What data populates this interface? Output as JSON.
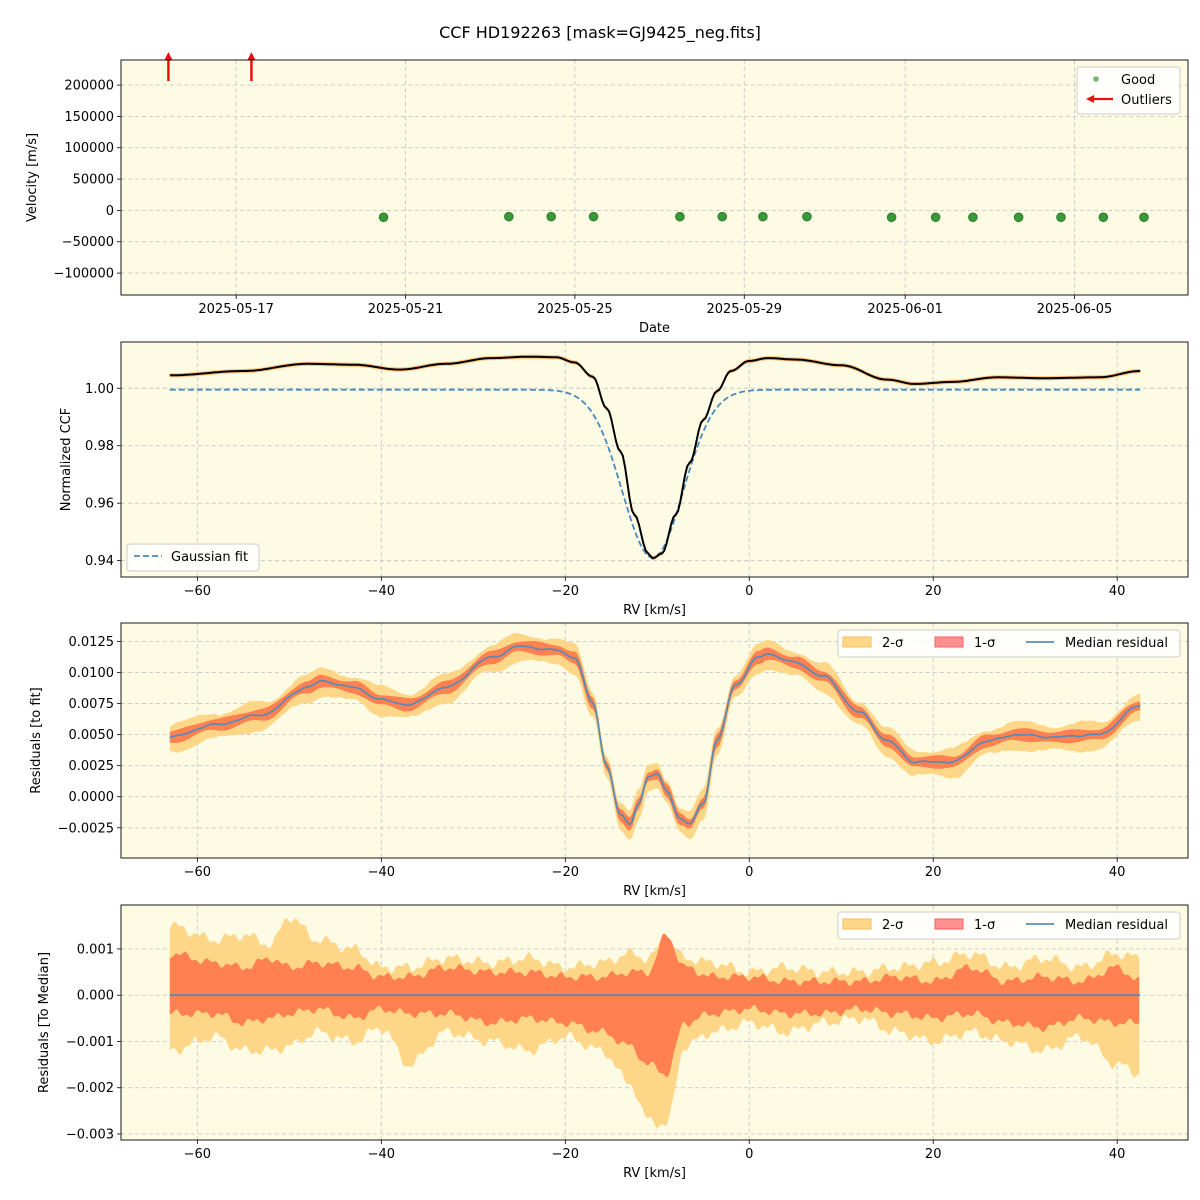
{
  "title": "CCF HD192263 [mask=GJ9425_neg.fits]",
  "colors": {
    "bg": "#fdfbe3",
    "good": "#3a9a3a",
    "outlier": "#ee1111",
    "gauss": "#4a8abf",
    "ccf": "#000000",
    "two_sigma": "#fdd688",
    "one_sigma": "#ff8050",
    "median": "#5b8bb5",
    "grid": "#c8c8c8"
  },
  "chart_data": [
    {
      "type": "scatter",
      "name": "velocity-time-series",
      "xlabel": "Date",
      "ylabel": "Velocity [m/s]",
      "xlim": [
        -1.8,
        61.2
      ],
      "ylim": [
        -135000,
        240000
      ],
      "x_ticks": [
        {
          "v": 5,
          "label": "2025-05-17"
        },
        {
          "v": 15,
          "label": "2025-05-21"
        },
        {
          "v": 25,
          "label": "2025-05-25"
        },
        {
          "v": 35,
          "label": "2025-05-29"
        },
        {
          "v": 44.5,
          "label": "2025-06-01"
        },
        {
          "v": 54.5,
          "label": "2025-06-05"
        }
      ],
      "y_ticks": [
        {
          "v": 200000,
          "label": "200000"
        },
        {
          "v": 150000,
          "label": "150000"
        },
        {
          "v": 100000,
          "label": "100000"
        },
        {
          "v": 50000,
          "label": "50000"
        },
        {
          "v": 0,
          "label": "0"
        },
        {
          "v": -50000,
          "label": "−50000"
        },
        {
          "v": -100000,
          "label": "−100000"
        }
      ],
      "good_points": [
        {
          "x": 13.7,
          "y": -11000
        },
        {
          "x": 21.1,
          "y": -10000
        },
        {
          "x": 23.6,
          "y": -10000
        },
        {
          "x": 26.1,
          "y": -10000
        },
        {
          "x": 31.2,
          "y": -10000
        },
        {
          "x": 33.7,
          "y": -10000
        },
        {
          "x": 36.1,
          "y": -10000
        },
        {
          "x": 38.7,
          "y": -10000
        },
        {
          "x": 43.7,
          "y": -11000
        },
        {
          "x": 46.3,
          "y": -11000
        },
        {
          "x": 48.5,
          "y": -11000
        },
        {
          "x": 51.2,
          "y": -11000
        },
        {
          "x": 53.7,
          "y": -11000
        },
        {
          "x": 56.2,
          "y": -11000
        },
        {
          "x": 58.6,
          "y": -11000
        }
      ],
      "outliers_x": [
        1.0,
        5.9
      ],
      "legend": [
        "Good",
        "Outliers"
      ]
    },
    {
      "type": "line",
      "name": "normalized-ccf",
      "xlabel": "RV [km/s]",
      "ylabel": "Normalized CCF",
      "xlim": [
        -68.3,
        47.7
      ],
      "ylim": [
        0.9343,
        1.0161
      ],
      "x_ticks": [
        -60,
        -40,
        -20,
        0,
        20,
        40
      ],
      "y_ticks": [
        0.94,
        0.96,
        0.98,
        1.0
      ],
      "y_tick_labels": [
        "0.94",
        "0.96",
        "0.98",
        "1.00"
      ],
      "gaussian_fit": {
        "continuum": 0.9995,
        "depth": 0.0585,
        "center": -10.5,
        "sigma": 3.3
      },
      "ccf_points": [
        [
          -63,
          1.0045
        ],
        [
          -55,
          1.006
        ],
        [
          -48,
          1.0085
        ],
        [
          -43,
          1.0082
        ],
        [
          -38,
          1.0065
        ],
        [
          -33,
          1.0085
        ],
        [
          -28,
          1.0105
        ],
        [
          -24,
          1.011
        ],
        [
          -21,
          1.0108
        ],
        [
          -19,
          1.009
        ],
        [
          -17,
          1.004
        ],
        [
          -15.5,
          0.993
        ],
        [
          -14,
          0.978
        ],
        [
          -12.5,
          0.956
        ],
        [
          -11,
          0.9425
        ],
        [
          -10.5,
          0.9408
        ],
        [
          -9.5,
          0.9425
        ],
        [
          -8,
          0.956
        ],
        [
          -6.5,
          0.974
        ],
        [
          -5,
          0.989
        ],
        [
          -3.5,
          0.999
        ],
        [
          -2,
          1.006
        ],
        [
          0,
          1.0095
        ],
        [
          2,
          1.0105
        ],
        [
          5,
          1.01
        ],
        [
          10,
          1.008
        ],
        [
          15,
          1.003
        ],
        [
          18,
          1.0015
        ],
        [
          22,
          1.0022
        ],
        [
          27,
          1.0038
        ],
        [
          32,
          1.0035
        ],
        [
          38,
          1.0038
        ],
        [
          42.5,
          1.006
        ]
      ],
      "legend": [
        "Gaussian fit"
      ]
    },
    {
      "type": "area",
      "name": "residuals-to-fit",
      "xlabel": "RV [km/s]",
      "ylabel": "Residuals [to fit]",
      "xlim": [
        -68.3,
        47.7
      ],
      "ylim": [
        -0.00493,
        0.01398
      ],
      "x_ticks": [
        -60,
        -40,
        -20,
        0,
        20,
        40
      ],
      "y_ticks": [
        -0.0025,
        0.0,
        0.0025,
        0.005,
        0.0075,
        0.01,
        0.0125
      ],
      "y_tick_labels": [
        "−0.0025",
        "0.0000",
        "0.0025",
        "0.0050",
        "0.0075",
        "0.0100",
        "0.0125"
      ],
      "median_points": [
        [
          -63,
          0.0048
        ],
        [
          -58,
          0.0058
        ],
        [
          -53,
          0.0066
        ],
        [
          -48,
          0.0088
        ],
        [
          -46.5,
          0.0093
        ],
        [
          -43,
          0.0088
        ],
        [
          -40,
          0.0078
        ],
        [
          -37,
          0.0074
        ],
        [
          -33,
          0.0088
        ],
        [
          -28,
          0.0112
        ],
        [
          -25,
          0.0121
        ],
        [
          -21,
          0.0118
        ],
        [
          -19,
          0.0112
        ],
        [
          -17,
          0.0075
        ],
        [
          -15.5,
          0.0025
        ],
        [
          -14,
          -0.0015
        ],
        [
          -13,
          -0.0022
        ],
        [
          -12,
          -0.0005
        ],
        [
          -11,
          0.0016
        ],
        [
          -10,
          0.0018
        ],
        [
          -9,
          0.0005
        ],
        [
          -7.5,
          -0.0018
        ],
        [
          -6.5,
          -0.0022
        ],
        [
          -5,
          -0.0005
        ],
        [
          -3.5,
          0.0045
        ],
        [
          -1.5,
          0.009
        ],
        [
          1,
          0.0112
        ],
        [
          2,
          0.0115
        ],
        [
          5,
          0.0108
        ],
        [
          8,
          0.0097
        ],
        [
          12,
          0.0068
        ],
        [
          15,
          0.0045
        ],
        [
          18,
          0.0028
        ],
        [
          22,
          0.0028
        ],
        [
          26,
          0.0045
        ],
        [
          29,
          0.005
        ],
        [
          33,
          0.0048
        ],
        [
          38,
          0.005
        ],
        [
          42.5,
          0.0073
        ]
      ],
      "legend": [
        "2-σ",
        "1-σ",
        "Median residual"
      ]
    },
    {
      "type": "area",
      "name": "residuals-to-median",
      "xlabel": "RV [km/s]",
      "ylabel": "Residuals [To Median]",
      "xlim": [
        -68.3,
        47.7
      ],
      "ylim": [
        -0.00313,
        0.00195
      ],
      "x_ticks": [
        -60,
        -40,
        -20,
        0,
        20,
        40
      ],
      "y_ticks": [
        -0.003,
        -0.002,
        -0.001,
        0.0,
        0.001
      ],
      "y_tick_labels": [
        "−0.003",
        "−0.002",
        "−0.001",
        "0.000",
        "0.001"
      ],
      "band_points": [
        [
          -63,
          0.0015,
          -0.0012,
          0.0009,
          -0.0004
        ],
        [
          -58,
          0.0012,
          -0.0009,
          0.0007,
          -0.0004
        ],
        [
          -55,
          0.0013,
          -0.0012,
          0.0006,
          -0.0006
        ],
        [
          -52,
          0.0011,
          -0.0012,
          0.0008,
          -0.0005
        ],
        [
          -50,
          0.0017,
          -0.0011,
          0.0006,
          -0.0004
        ],
        [
          -47,
          0.0012,
          -0.0008,
          0.0007,
          -0.0003
        ],
        [
          -43,
          0.001,
          -0.001,
          0.0006,
          -0.0005
        ],
        [
          -40,
          0.0006,
          -0.0007,
          0.0004,
          -0.0003
        ],
        [
          -37,
          0.0006,
          -0.0015,
          0.0004,
          -0.0004
        ],
        [
          -33,
          0.0008,
          -0.0008,
          0.0006,
          -0.0004
        ],
        [
          -28,
          0.0007,
          -0.001,
          0.0005,
          -0.0006
        ],
        [
          -24,
          0.0008,
          -0.0012,
          0.0005,
          -0.0005
        ],
        [
          -20,
          0.0006,
          -0.0009,
          0.0004,
          -0.0006
        ],
        [
          -16,
          0.0007,
          -0.0012,
          0.0004,
          -0.0008
        ],
        [
          -13,
          0.0009,
          -0.0019,
          0.0005,
          -0.0011
        ],
        [
          -11,
          0.0008,
          -0.0027,
          0.0005,
          -0.0015
        ],
        [
          -9,
          0.0012,
          -0.0028,
          0.0013,
          -0.0017
        ],
        [
          -7,
          0.0008,
          -0.0011,
          0.0006,
          -0.0006
        ],
        [
          -4,
          0.0007,
          -0.0008,
          0.0004,
          -0.0004
        ],
        [
          0,
          0.0005,
          -0.0006,
          0.0004,
          -0.0003
        ],
        [
          4,
          0.0006,
          -0.0008,
          0.0003,
          -0.0004
        ],
        [
          8,
          0.0005,
          -0.0006,
          0.0003,
          -0.0004
        ],
        [
          12,
          0.0005,
          -0.0005,
          0.0003,
          -0.0003
        ],
        [
          16,
          0.0006,
          -0.0008,
          0.0004,
          -0.0004
        ],
        [
          20,
          0.0007,
          -0.001,
          0.0003,
          -0.0005
        ],
        [
          24,
          0.0009,
          -0.0008,
          0.0006,
          -0.0004
        ],
        [
          28,
          0.0006,
          -0.001,
          0.0003,
          -0.0006
        ],
        [
          32,
          0.0008,
          -0.0012,
          0.0004,
          -0.0007
        ],
        [
          36,
          0.0006,
          -0.0009,
          0.0003,
          -0.0005
        ],
        [
          40,
          0.0009,
          -0.0015,
          0.0006,
          -0.0006
        ],
        [
          42.5,
          0.0008,
          -0.0017,
          0.0003,
          -0.0006
        ]
      ],
      "legend": [
        "2-σ",
        "1-σ",
        "Median residual"
      ]
    }
  ]
}
